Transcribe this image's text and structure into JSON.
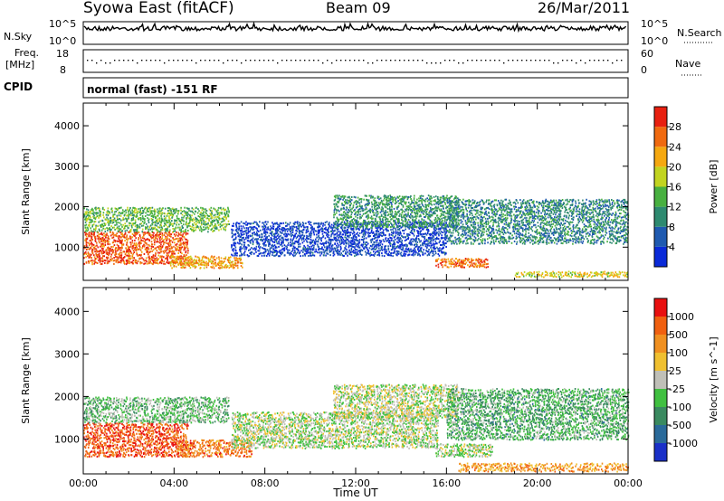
{
  "header": {
    "station": "Syowa East (fitACF)",
    "beam": "Beam 09",
    "date": "26/Mar/2011"
  },
  "strips": {
    "nsky_label": "N.Sky",
    "nsky_top_tick": "10^5",
    "nsky_bottom_tick": "10^0",
    "nsearch_top_tick": "10^5",
    "nsearch_bottom_tick": "10^0",
    "nsearch_label": "N.Search",
    "freq_label_1": "Freq.",
    "freq_label_2": "[MHz]",
    "freq_top_tick": "18",
    "freq_bottom_tick": "8",
    "nave_top_tick": "60",
    "nave_bottom_tick": "0",
    "nave_label": "Nave",
    "cpid_label": "CPID",
    "cpid_text": "normal (fast) -151 RF"
  },
  "chart_data": [
    {
      "type": "heatmap",
      "ylabel": "Slant Range [km]",
      "ylim": [
        180,
        4560
      ],
      "yticks": [
        1000,
        2000,
        3000,
        4000
      ],
      "xlim": [
        0,
        24
      ],
      "colorbar": {
        "label": "Power [dB]",
        "ticks": [
          "4",
          "8",
          "12",
          "16",
          "20",
          "24",
          "28"
        ],
        "colors": [
          "#0a2ad8",
          "#1f5ab0",
          "#2e8a70",
          "#48b040",
          "#c2d420",
          "#f5a810",
          "#f06a10",
          "#e82010"
        ]
      },
      "regions": [
        {
          "t0": 0.0,
          "t1": 4.6,
          "r0": 600,
          "r1": 1400,
          "level": 0.85
        },
        {
          "t0": 0.0,
          "t1": 6.4,
          "r0": 1400,
          "r1": 2000,
          "level": 0.45
        },
        {
          "t0": 3.8,
          "t1": 7.0,
          "r0": 500,
          "r1": 800,
          "level": 0.7
        },
        {
          "t0": 6.5,
          "t1": 16.0,
          "r0": 800,
          "r1": 1650,
          "level": 0.12
        },
        {
          "t0": 11.0,
          "t1": 16.5,
          "r0": 1500,
          "r1": 2300,
          "level": 0.35
        },
        {
          "t0": 15.5,
          "t1": 17.8,
          "r0": 520,
          "r1": 740,
          "level": 0.82
        },
        {
          "t0": 16.0,
          "t1": 24.0,
          "r0": 1100,
          "r1": 2200,
          "level": 0.3
        },
        {
          "t0": 19.0,
          "t1": 24.0,
          "r0": 280,
          "r1": 420,
          "level": 0.6
        }
      ]
    },
    {
      "type": "heatmap",
      "ylabel": "Slant Range [km]",
      "xlabel": "Time UT",
      "ylim": [
        180,
        4560
      ],
      "yticks": [
        1000,
        2000,
        3000,
        4000
      ],
      "xlim": [
        0,
        24
      ],
      "xticks": [
        "00:00",
        "04:00",
        "08:00",
        "12:00",
        "16:00",
        "20:00",
        "00:00"
      ],
      "colorbar": {
        "label": "Velocity [m s^-1]",
        "ticks": [
          "1000",
          "500",
          "100",
          "25",
          "-25",
          "-100",
          "-500",
          "-1000"
        ],
        "colors": [
          "#1a30c8",
          "#2a6a9a",
          "#3a8a60",
          "#40c040",
          "#c0c0b8",
          "#f0c030",
          "#f09020",
          "#f06010",
          "#e81010"
        ]
      },
      "regions": [
        {
          "t0": 0.0,
          "t1": 4.6,
          "r0": 600,
          "r1": 1400,
          "level": 0.85
        },
        {
          "t0": 0.0,
          "t1": 6.4,
          "r0": 1400,
          "r1": 2000,
          "level": 0.4
        },
        {
          "t0": 4.0,
          "t1": 7.4,
          "r0": 600,
          "r1": 1000,
          "level": 0.78
        },
        {
          "t0": 6.5,
          "t1": 15.6,
          "r0": 800,
          "r1": 1650,
          "level": 0.48
        },
        {
          "t0": 11.0,
          "t1": 16.5,
          "r0": 1500,
          "r1": 2300,
          "level": 0.5
        },
        {
          "t0": 15.5,
          "t1": 18.0,
          "r0": 600,
          "r1": 900,
          "level": 0.48
        },
        {
          "t0": 16.0,
          "t1": 24.0,
          "r0": 1000,
          "r1": 2200,
          "level": 0.35
        },
        {
          "t0": 16.5,
          "t1": 24.0,
          "r0": 250,
          "r1": 450,
          "level": 0.7
        }
      ]
    }
  ]
}
